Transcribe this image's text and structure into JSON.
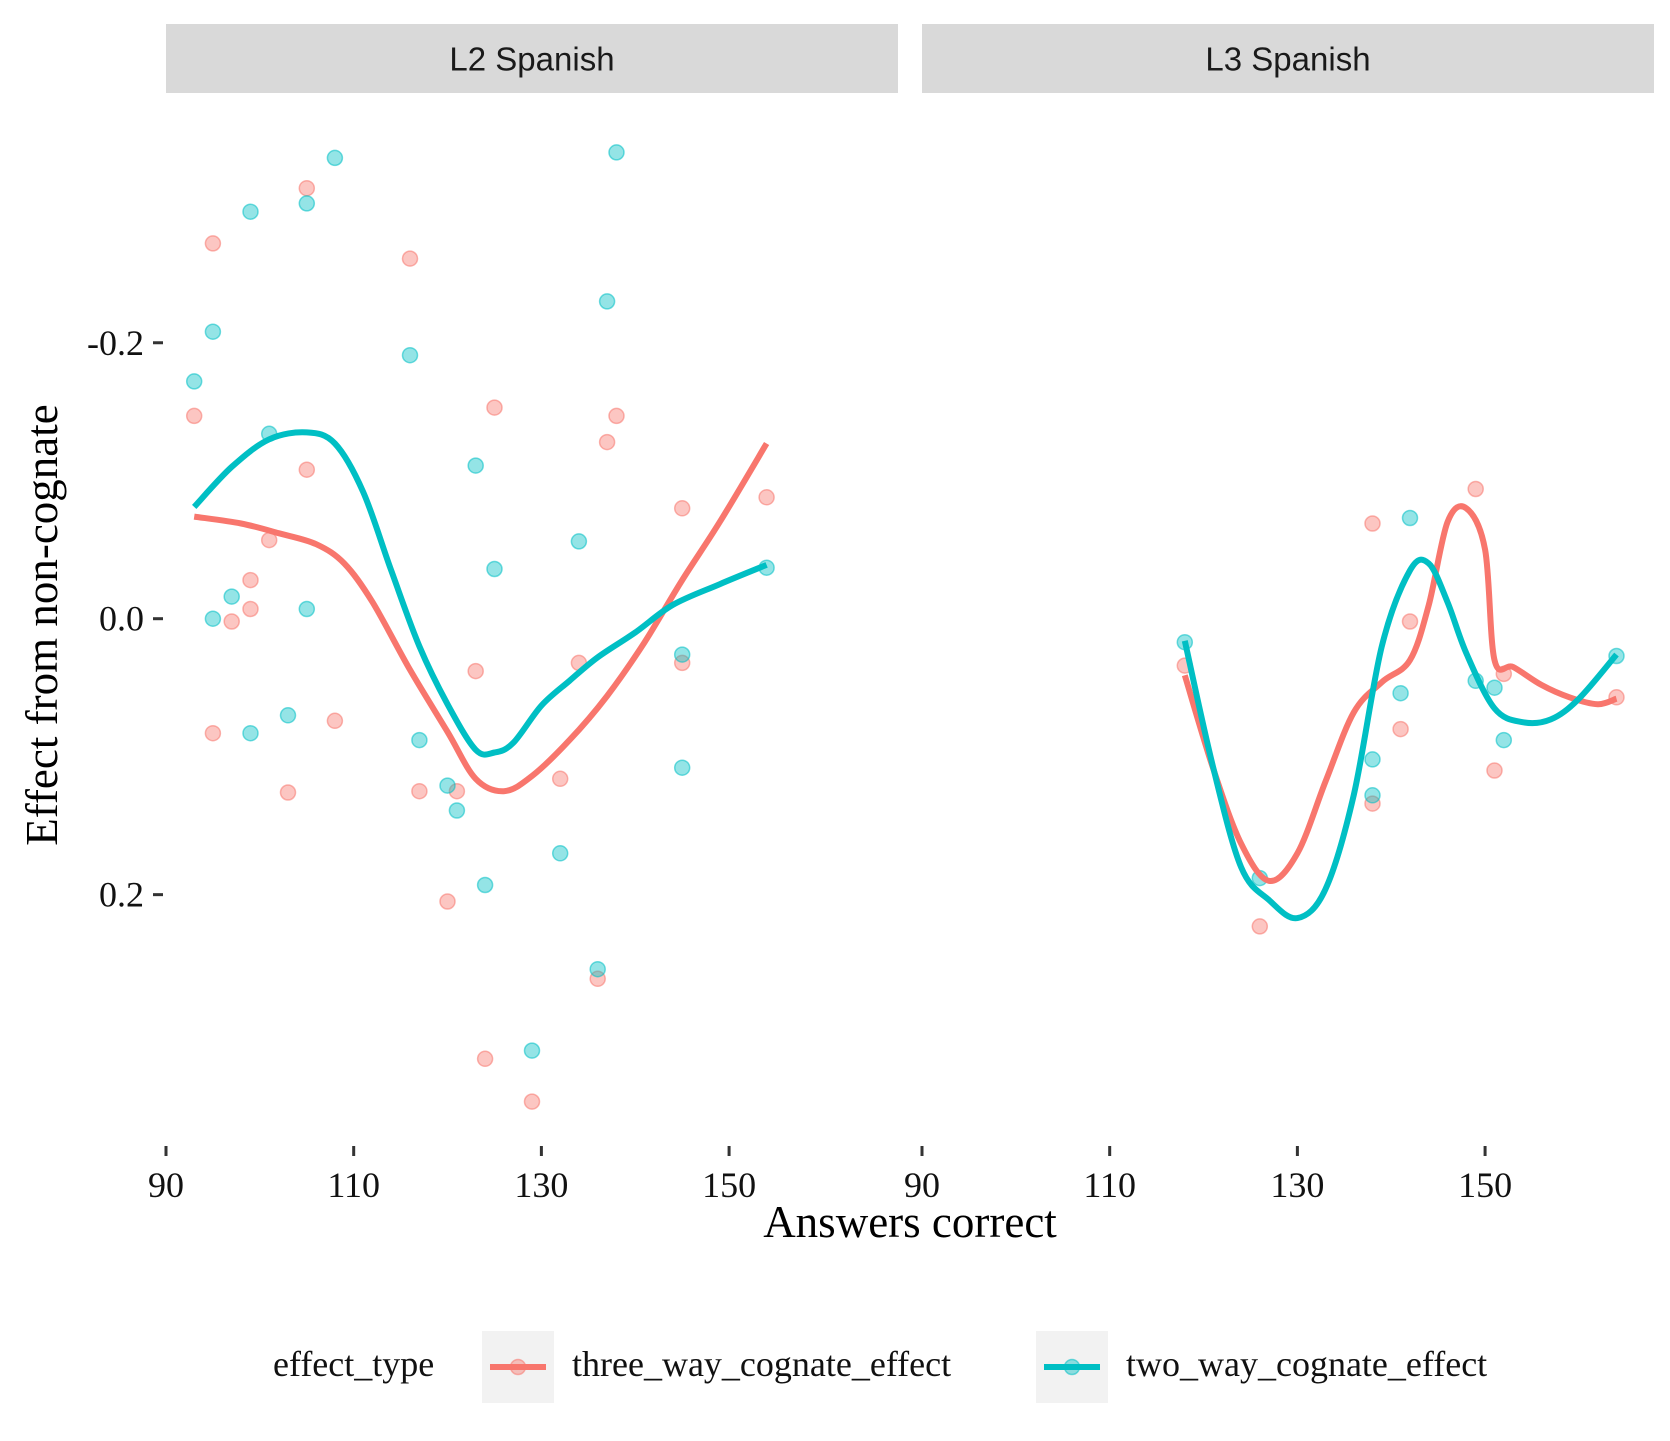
{
  "chart_data": {
    "type": "scatter",
    "facets": [
      {
        "label": "L2 Spanish",
        "series": [
          {
            "name": "three_way_cognate_effect",
            "points": [
              [
                93,
                -0.147
              ],
              [
                95,
                -0.272
              ],
              [
                95,
                0.083
              ],
              [
                97,
                0.002
              ],
              [
                99,
                -0.007
              ],
              [
                99,
                -0.028
              ],
              [
                101,
                -0.057
              ],
              [
                103,
                0.126
              ],
              [
                105,
                -0.312
              ],
              [
                105,
                -0.108
              ],
              [
                108,
                0.074
              ],
              [
                116,
                -0.261
              ],
              [
                117,
                0.125
              ],
              [
                120,
                0.205
              ],
              [
                121,
                0.125
              ],
              [
                123,
                0.038
              ],
              [
                124,
                0.319
              ],
              [
                125,
                -0.153
              ],
              [
                129,
                0.35
              ],
              [
                132,
                0.116
              ],
              [
                134,
                0.032
              ],
              [
                136,
                0.261
              ],
              [
                137,
                -0.128
              ],
              [
                138,
                -0.147
              ],
              [
                145,
                -0.08
              ],
              [
                145,
                0.032
              ],
              [
                154,
                -0.088
              ]
            ],
            "smooth": [
              [
                93,
                -0.074
              ],
              [
                98,
                -0.069
              ],
              [
                102,
                -0.062
              ],
              [
                106,
                -0.054
              ],
              [
                109,
                -0.04
              ],
              [
                112,
                -0.012
              ],
              [
                116,
                0.037
              ],
              [
                120,
                0.082
              ],
              [
                123,
                0.116
              ],
              [
                126,
                0.125
              ],
              [
                129,
                0.114
              ],
              [
                133,
                0.088
              ],
              [
                137,
                0.056
              ],
              [
                141,
                0.017
              ],
              [
                145,
                -0.028
              ],
              [
                149,
                -0.07
              ],
              [
                154,
                -0.127
              ]
            ]
          },
          {
            "name": "two_way_cognate_effect",
            "points": [
              [
                93,
                -0.172
              ],
              [
                95,
                -0.208
              ],
              [
                95,
                0.0
              ],
              [
                97,
                -0.016
              ],
              [
                99,
                -0.295
              ],
              [
                99,
                0.083
              ],
              [
                101,
                -0.134
              ],
              [
                103,
                0.07
              ],
              [
                105,
                -0.301
              ],
              [
                105,
                -0.007
              ],
              [
                108,
                -0.334
              ],
              [
                116,
                -0.191
              ],
              [
                117,
                0.088
              ],
              [
                120,
                0.121
              ],
              [
                121,
                0.139
              ],
              [
                123,
                -0.111
              ],
              [
                124,
                0.193
              ],
              [
                125,
                -0.036
              ],
              [
                129,
                0.313
              ],
              [
                132,
                0.17
              ],
              [
                134,
                -0.056
              ],
              [
                136,
                0.254
              ],
              [
                137,
                -0.23
              ],
              [
                138,
                -0.338
              ],
              [
                145,
                0.026
              ],
              [
                145,
                0.108
              ],
              [
                154,
                -0.037
              ]
            ],
            "smooth": [
              [
                93,
                -0.081
              ],
              [
                97,
                -0.11
              ],
              [
                101,
                -0.13
              ],
              [
                105,
                -0.135
              ],
              [
                108,
                -0.127
              ],
              [
                111,
                -0.092
              ],
              [
                114,
                -0.035
              ],
              [
                117,
                0.02
              ],
              [
                120,
                0.062
              ],
              [
                123,
                0.095
              ],
              [
                125,
                0.097
              ],
              [
                127,
                0.09
              ],
              [
                130,
                0.063
              ],
              [
                133,
                0.045
              ],
              [
                136,
                0.028
              ],
              [
                140,
                0.01
              ],
              [
                144,
                -0.01
              ],
              [
                149,
                -0.025
              ],
              [
                154,
                -0.039
              ]
            ]
          }
        ]
      },
      {
        "label": "L3 Spanish",
        "series": [
          {
            "name": "three_way_cognate_effect",
            "points": [
              [
                118,
                0.034
              ],
              [
                126,
                0.223
              ],
              [
                138,
                -0.069
              ],
              [
                138,
                0.134
              ],
              [
                141,
                0.08
              ],
              [
                142,
                0.002
              ],
              [
                149,
                -0.094
              ],
              [
                151,
                0.11
              ],
              [
                152,
                0.04
              ],
              [
                164,
                0.057
              ]
            ],
            "smooth": [
              [
                118,
                0.041
              ],
              [
                121,
                0.108
              ],
              [
                124,
                0.163
              ],
              [
                127,
                0.19
              ],
              [
                130,
                0.17
              ],
              [
                133,
                0.118
              ],
              [
                136,
                0.068
              ],
              [
                139,
                0.046
              ],
              [
                142,
                0.03
              ],
              [
                144,
                -0.01
              ],
              [
                146,
                -0.07
              ],
              [
                148,
                -0.08
              ],
              [
                150,
                -0.05
              ],
              [
                151,
                0.03
              ],
              [
                153,
                0.035
              ],
              [
                156,
                0.048
              ],
              [
                159,
                0.057
              ],
              [
                162,
                0.062
              ],
              [
                164,
                0.058
              ]
            ]
          },
          {
            "name": "two_way_cognate_effect",
            "points": [
              [
                118,
                0.017
              ],
              [
                126,
                0.188
              ],
              [
                138,
                0.102
              ],
              [
                138,
                0.128
              ],
              [
                141,
                0.054
              ],
              [
                142,
                -0.073
              ],
              [
                149,
                0.045
              ],
              [
                151,
                0.05
              ],
              [
                152,
                0.088
              ],
              [
                164,
                0.027
              ]
            ],
            "smooth": [
              [
                118,
                0.016
              ],
              [
                121,
                0.107
              ],
              [
                124,
                0.18
              ],
              [
                127,
                0.204
              ],
              [
                130,
                0.217
              ],
              [
                133,
                0.196
              ],
              [
                136,
                0.128
              ],
              [
                139,
                0.02
              ],
              [
                142,
                -0.035
              ],
              [
                144,
                -0.04
              ],
              [
                146,
                -0.012
              ],
              [
                148,
                0.025
              ],
              [
                151,
                0.065
              ],
              [
                154,
                0.075
              ],
              [
                157,
                0.073
              ],
              [
                160,
                0.058
              ],
              [
                164,
                0.026
              ]
            ]
          }
        ]
      }
    ],
    "xlabel": "Answers correct",
    "ylabel": "Effect from non-cognate",
    "xlim": [
      90,
      168
    ],
    "ylim": [
      0.38,
      -0.36
    ],
    "x_ticks": [
      "90",
      "110",
      "130",
      "150"
    ],
    "y_ticks": [
      "-0.2",
      "0.0",
      "0.2"
    ],
    "y_reversed": true,
    "grid": false,
    "legend": {
      "title": "effect_type",
      "position": "bottom",
      "entries": [
        "three_way_cognate_effect",
        "two_way_cognate_effect"
      ]
    },
    "colors": {
      "three_way_cognate_effect": "#F8766D",
      "two_way_cognate_effect": "#00BFC4",
      "strip_background": "#D9D9D9",
      "legend_key_background": "#F2F2F2"
    }
  }
}
